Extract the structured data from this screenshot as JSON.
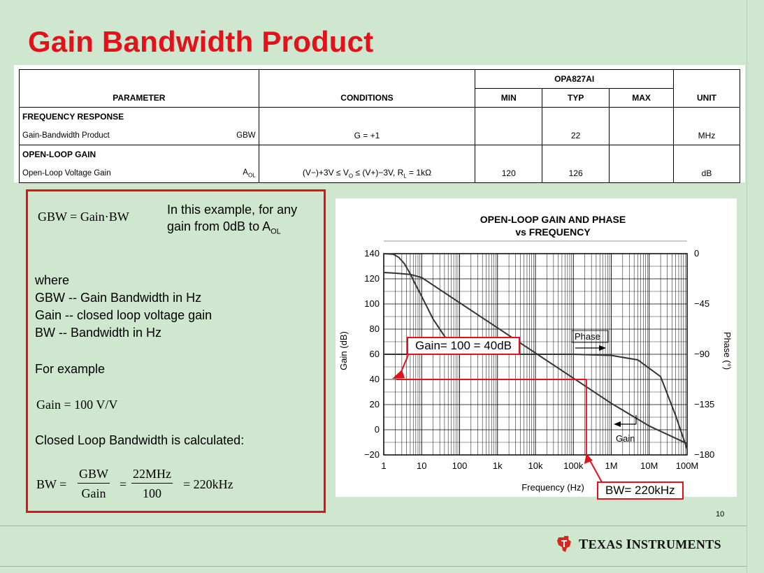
{
  "slide": {
    "title": "Gain Bandwidth Product",
    "page_number": "10",
    "brand": "Texas Instruments"
  },
  "spec_table": {
    "part": "OPA827AI",
    "headers": {
      "parameter": "PARAMETER",
      "conditions": "CONDITIONS",
      "min": "MIN",
      "typ": "TYP",
      "max": "MAX",
      "unit": "UNIT"
    },
    "groups": [
      {
        "name": "FREQUENCY RESPONSE",
        "rows": [
          {
            "parameter": "Gain-Bandwidth Product",
            "symbol": "GBW",
            "conditions": "G = +1",
            "min": "",
            "typ": "22",
            "max": "",
            "unit": "MHz"
          }
        ]
      },
      {
        "name": "OPEN-LOOP GAIN",
        "rows": [
          {
            "parameter": "Open-Loop Voltage Gain",
            "symbol": "A",
            "symbol_sub": "OL",
            "conditions": "(V−)+3V ≤ V",
            "conditions_sub1": "O",
            "conditions_mid": " ≤ (V+)−3V, R",
            "conditions_sub2": "L",
            "conditions_end": " = 1kΩ",
            "min": "120",
            "typ": "126",
            "max": "",
            "unit": "dB"
          }
        ]
      }
    ]
  },
  "formula_box": {
    "gbw_formula": "GBW = Gain·BW",
    "note_line1": "In this example, for any",
    "note_line2": "gain from 0dB to A",
    "note_sub": "OL",
    "where": "where",
    "def_gbw": "GBW -- Gain Bandwidth in Hz",
    "def_gain": "Gain -- closed loop voltage gain",
    "def_bw": "BW -- Bandwidth in Hz",
    "for_example": "For example",
    "gain_example": "Gain = 100 V/V",
    "closed_loop": "Closed Loop Bandwidth is calculated:",
    "bw_lhs": "BW =",
    "frac1_num": "GBW",
    "frac1_den": "Gain",
    "eq1": "=",
    "frac2_num": "22MHz",
    "frac2_den": "100",
    "result": "= 220kHz"
  },
  "callouts": {
    "gain": "Gain= 100 = 40dB",
    "bw": "BW= 220kHz"
  },
  "chart_data": {
    "type": "line",
    "title": "OPEN-LOOP GAIN AND PHASE",
    "subtitle": "vs FREQUENCY",
    "xlabel": "Frequency (Hz)",
    "ylabel": "Gain (dB)",
    "y2label": "Phase (°)",
    "x_scale": "log",
    "xlim": [
      1,
      100000000
    ],
    "ylim": [
      -20,
      140
    ],
    "y2lim": [
      -180,
      0
    ],
    "x_ticks": [
      1,
      10,
      100,
      1000,
      10000,
      100000,
      1000000,
      10000000,
      100000000
    ],
    "x_tick_labels": [
      "1",
      "10",
      "100",
      "1k",
      "10k",
      "100k",
      "1M",
      "10M",
      "100M"
    ],
    "y_ticks": [
      140,
      120,
      100,
      80,
      60,
      40,
      20,
      0,
      -20
    ],
    "y2_ticks": [
      0,
      -45,
      -90,
      -135,
      -180
    ],
    "grid": true,
    "series": [
      {
        "name": "Gain",
        "axis": "left",
        "color": "#333333",
        "x": [
          1,
          2,
          5,
          10,
          100,
          1000,
          10000,
          100000,
          1000000,
          10000000,
          100000000
        ],
        "y": [
          125,
          124.5,
          123.5,
          121,
          101,
          81,
          61,
          41,
          21,
          3,
          -11
        ]
      },
      {
        "name": "Gain (low-frequency)",
        "axis": "left",
        "color": "#333333",
        "x": [
          1,
          1.8,
          2.5,
          3.5,
          5,
          7,
          10,
          20,
          50
        ],
        "y": [
          140,
          139.5,
          137,
          132,
          124,
          115,
          106,
          88,
          70
        ]
      },
      {
        "name": "Phase",
        "axis": "right",
        "color": "#333333",
        "x": [
          1,
          10000,
          100000,
          1000000,
          5000000,
          20000000,
          50000000,
          100000000
        ],
        "y": [
          -90,
          -90,
          -90,
          -91,
          -95,
          -110,
          -145,
          -175
        ]
      }
    ],
    "annotations": {
      "phase_label": "Phase",
      "gain_label": "Gain",
      "gain_level_db": 40,
      "bw_frequency_hz": 220000
    }
  }
}
